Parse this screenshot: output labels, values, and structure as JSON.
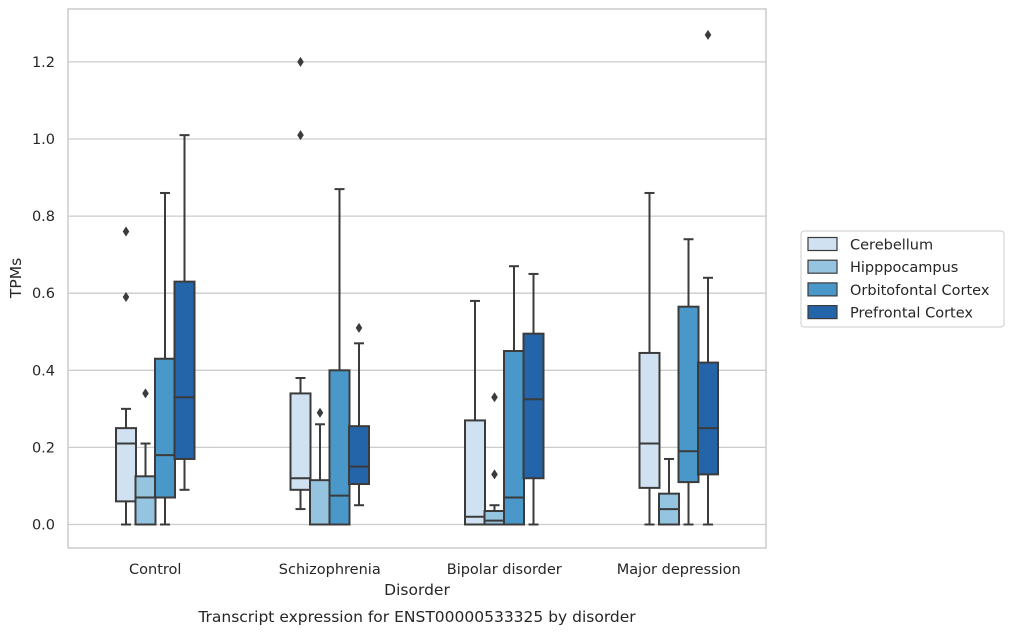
{
  "chart_data": {
    "type": "boxplot",
    "caption": "Transcript expression for ENST00000533325 by disorder",
    "xlabel": "Disorder",
    "ylabel": "TPMs",
    "ylim": [
      -0.062,
      1.34
    ],
    "yticks": [
      0.0,
      0.2,
      0.4,
      0.6,
      0.8,
      1.0,
      1.2
    ],
    "ytick_labels": [
      "0.0",
      "0.2",
      "0.4",
      "0.6",
      "0.8",
      "1.0",
      "1.2"
    ],
    "grid": "horizontal",
    "legend_position": "right",
    "categories": [
      "Control",
      "Schizophrenia",
      "Bipolar disorder",
      "Major depression"
    ],
    "series": [
      {
        "name": "Cerebellum",
        "color": "#d0e1f2",
        "boxes": [
          {
            "whisker_low": 0.0,
            "q1": 0.06,
            "median": 0.21,
            "q3": 0.25,
            "whisker_high": 0.3,
            "outliers": [
              0.59,
              0.76
            ]
          },
          {
            "whisker_low": 0.04,
            "q1": 0.09,
            "median": 0.12,
            "q3": 0.34,
            "whisker_high": 0.38,
            "outliers": [
              1.01,
              1.2
            ]
          },
          {
            "whisker_low": 0.0,
            "q1": 0.0,
            "median": 0.02,
            "q3": 0.27,
            "whisker_high": 0.58,
            "outliers": []
          },
          {
            "whisker_low": 0.0,
            "q1": 0.095,
            "median": 0.21,
            "q3": 0.445,
            "whisker_high": 0.86,
            "outliers": []
          }
        ]
      },
      {
        "name": "Hipppocampus",
        "color": "#94c4df",
        "boxes": [
          {
            "whisker_low": 0.0,
            "q1": 0.0,
            "median": 0.07,
            "q3": 0.125,
            "whisker_high": 0.21,
            "outliers": [
              0.34
            ]
          },
          {
            "whisker_low": 0.0,
            "q1": 0.0,
            "median": 0.0,
            "q3": 0.115,
            "whisker_high": 0.26,
            "outliers": [
              0.29
            ]
          },
          {
            "whisker_low": 0.0,
            "q1": 0.0,
            "median": 0.01,
            "q3": 0.035,
            "whisker_high": 0.05,
            "outliers": [
              0.13,
              0.33
            ]
          },
          {
            "whisker_low": 0.0,
            "q1": 0.0,
            "median": 0.04,
            "q3": 0.08,
            "whisker_high": 0.17,
            "outliers": []
          }
        ]
      },
      {
        "name": "Orbitofontal Cortex",
        "color": "#4a98c9",
        "boxes": [
          {
            "whisker_low": 0.0,
            "q1": 0.07,
            "median": 0.18,
            "q3": 0.43,
            "whisker_high": 0.86,
            "outliers": []
          },
          {
            "whisker_low": 0.0,
            "q1": 0.0,
            "median": 0.075,
            "q3": 0.4,
            "whisker_high": 0.87,
            "outliers": []
          },
          {
            "whisker_low": 0.0,
            "q1": 0.0,
            "median": 0.07,
            "q3": 0.45,
            "whisker_high": 0.67,
            "outliers": []
          },
          {
            "whisker_low": 0.0,
            "q1": 0.11,
            "median": 0.19,
            "q3": 0.565,
            "whisker_high": 0.74,
            "outliers": []
          }
        ]
      },
      {
        "name": "Prefrontal Cortex",
        "color": "#2464a8",
        "boxes": [
          {
            "whisker_low": 0.09,
            "q1": 0.17,
            "median": 0.33,
            "q3": 0.63,
            "whisker_high": 1.01,
            "outliers": []
          },
          {
            "whisker_low": 0.05,
            "q1": 0.105,
            "median": 0.15,
            "q3": 0.255,
            "whisker_high": 0.47,
            "outliers": [
              0.51
            ]
          },
          {
            "whisker_low": 0.0,
            "q1": 0.12,
            "median": 0.325,
            "q3": 0.495,
            "whisker_high": 0.65,
            "outliers": []
          },
          {
            "whisker_low": 0.0,
            "q1": 0.13,
            "median": 0.25,
            "q3": 0.42,
            "whisker_high": 0.64,
            "outliers": [
              1.27
            ]
          }
        ]
      }
    ]
  }
}
